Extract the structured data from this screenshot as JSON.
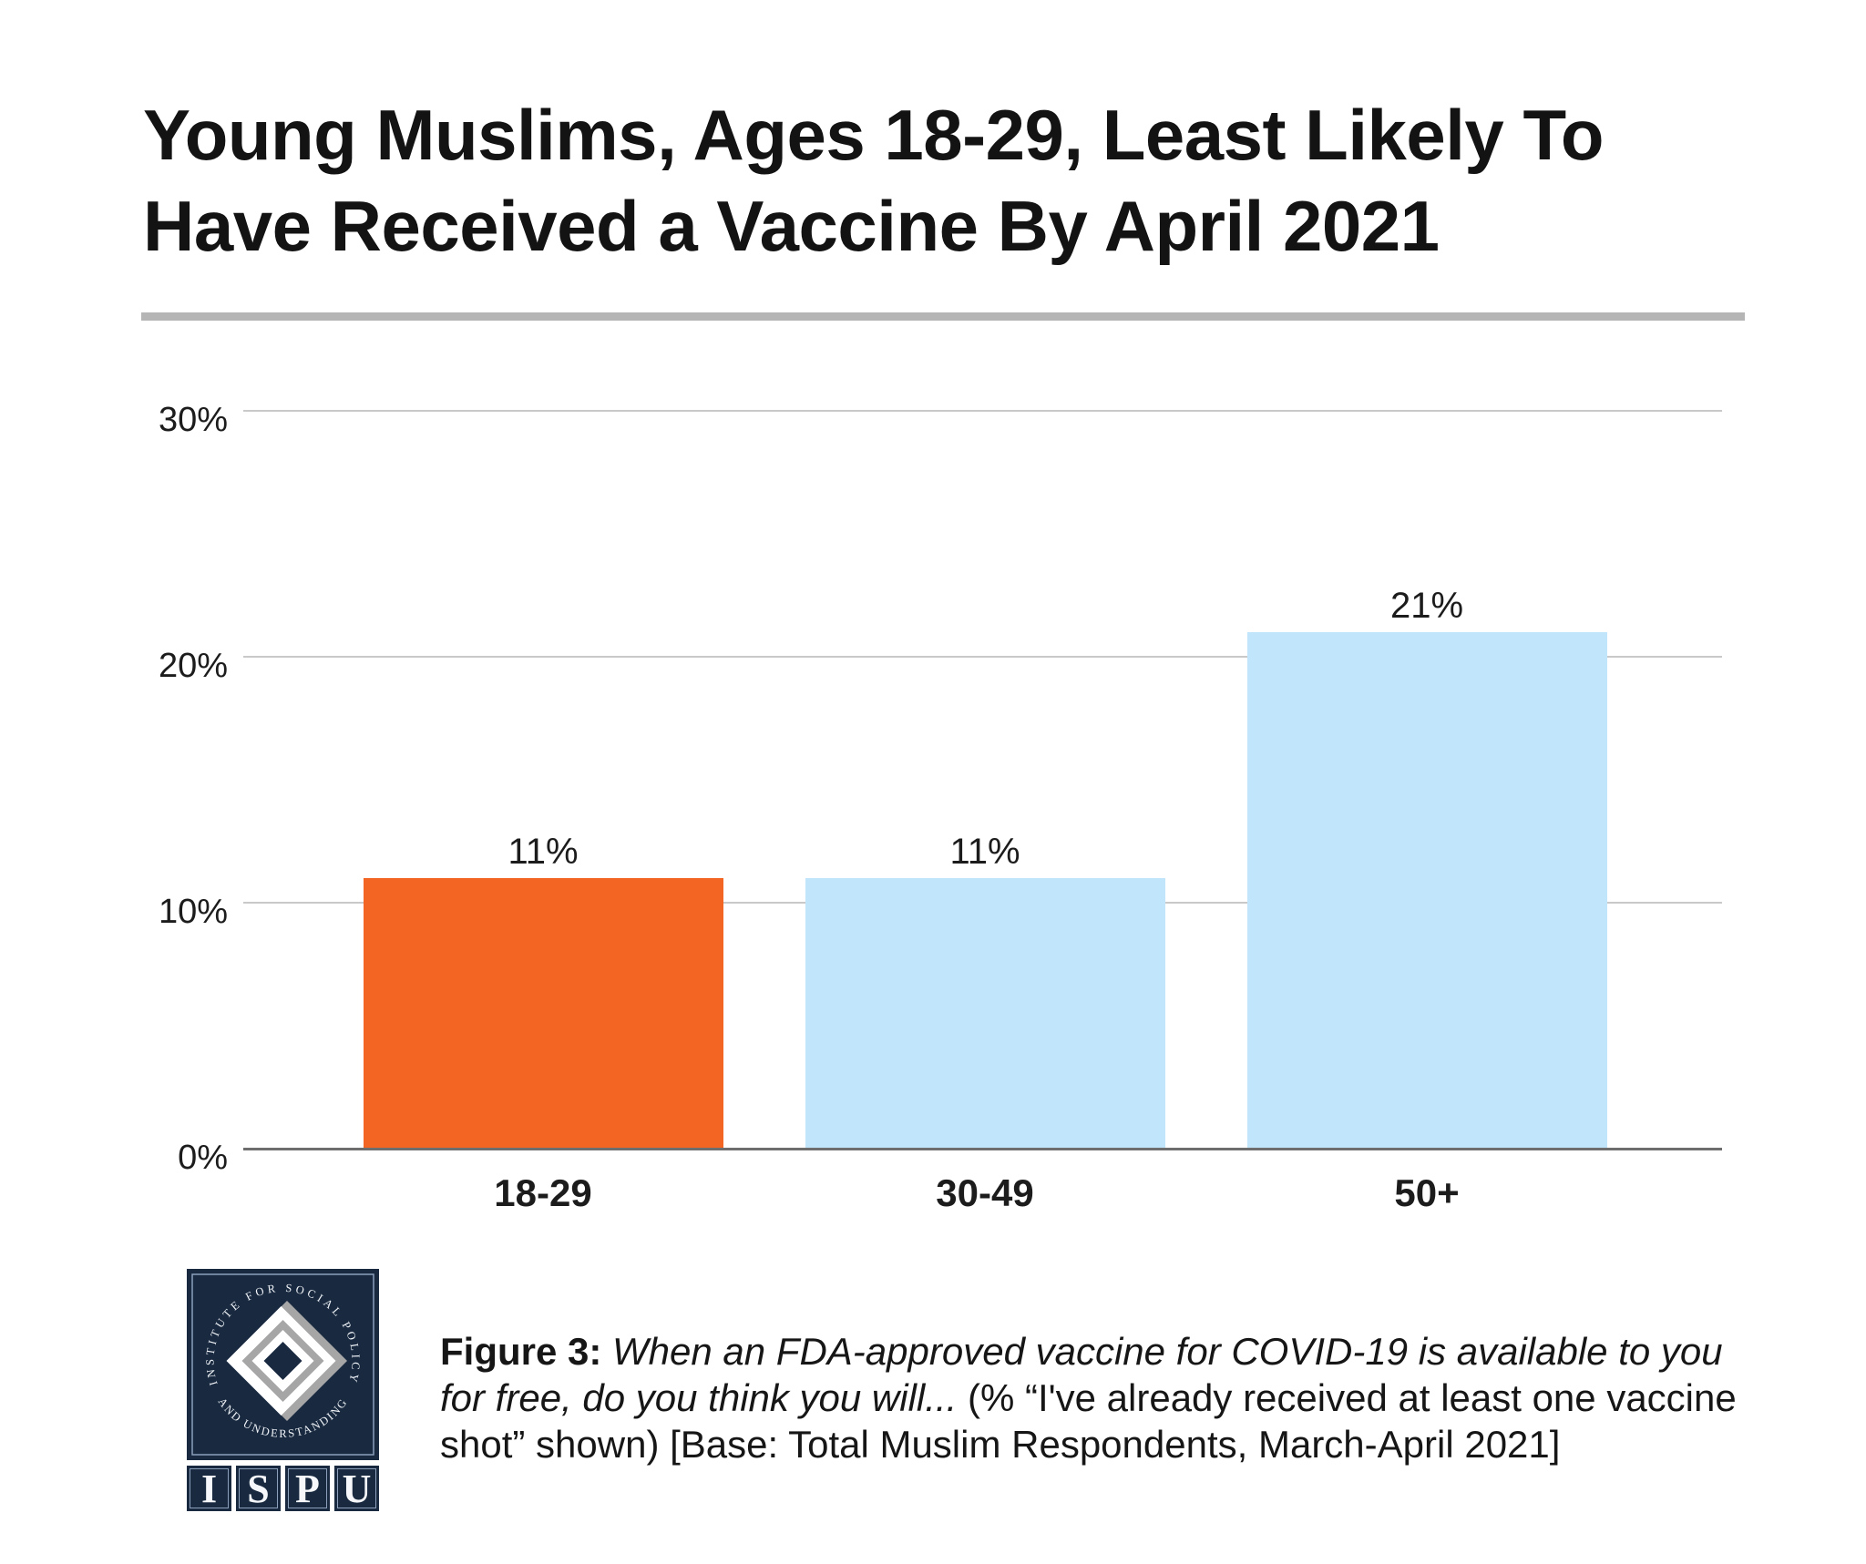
{
  "title": {
    "text": "Young Muslims, Ages 18-29, Least Likely To Have Received a Vaccine By April 2021"
  },
  "chart_data": {
    "type": "bar",
    "title": "Young Muslims, Ages 18-29, Least Likely To Have Received a Vaccine By April 2021",
    "categories": [
      "18-29",
      "30-49",
      "50+"
    ],
    "values": [
      11,
      11,
      21
    ],
    "value_labels": [
      "11%",
      "11%",
      "21%"
    ],
    "bar_colors": [
      "#f26522",
      "#c1e5fa",
      "#c1e5fa"
    ],
    "highlight_category": "18-29",
    "xlabel": "",
    "ylabel": "",
    "ylim": [
      0,
      30
    ],
    "yticks": [
      {
        "value": 0,
        "label": "0%"
      },
      {
        "value": 10,
        "label": "10%"
      },
      {
        "value": 20,
        "label": "20%"
      },
      {
        "value": 30,
        "label": "30%"
      }
    ],
    "grid": "horizontal",
    "legend": "none"
  },
  "caption": {
    "label": "Figure 3:",
    "question_italic": "When an FDA-approved vaccine for COVID-19 is available to you for free, do you think you will...",
    "detail": "(% “I've already received at least one vaccine shot” shown) [Base: Total Muslim Respondents, March-April 2021]"
  },
  "logo": {
    "arc_top": "INSTITUTE FOR SOCIAL POLICY",
    "arc_bottom": "AND UNDERSTANDING",
    "letters": [
      "I",
      "S",
      "P",
      "U"
    ],
    "navy": "#182940",
    "gray": "#a6a6a6",
    "white": "#ffffff"
  },
  "colors": {
    "grid_line": "#c9c9c9",
    "axis_line": "#6e6e6e",
    "divider": "#b5b5b5",
    "text": "#1a1a1a"
  }
}
